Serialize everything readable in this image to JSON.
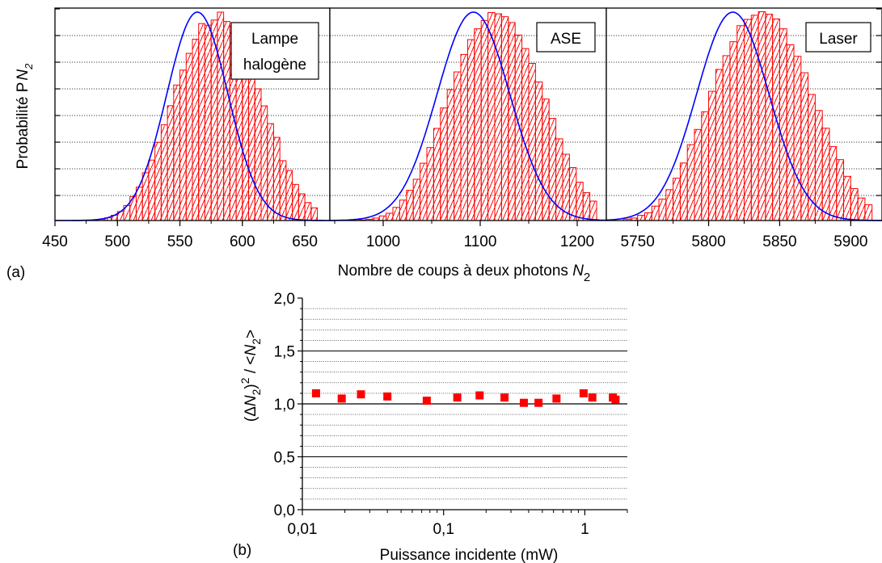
{
  "figure": {
    "panel_a_tag": "(a)",
    "panel_b_tag": "(b)"
  },
  "chart_data": [
    {
      "type": "bar",
      "panel": "a",
      "ylabel_prefix": "Probabilité P",
      "ylabel_sub": "N",
      "ylabel_subsub": "2",
      "xlabel_prefix": "Nombre de coups à deux photons ",
      "xlabel_var": "N",
      "xlabel_sub": "2",
      "colors": {
        "hist": "#ff0000",
        "fit": "#0000ff"
      },
      "subplots": [
        {
          "legend": [
            "Lampe",
            "halogène"
          ],
          "xlim": [
            450,
            670
          ],
          "ticks": [
            450,
            500,
            550,
            600,
            650
          ],
          "tick_labels": [
            "450",
            "500",
            "550",
            "600",
            "650"
          ],
          "mean": 564,
          "sigma": 24.5,
          "bin_width": 5,
          "bin_start": 475,
          "bin_end": 660,
          "bin_values": [
            0.002,
            0.003,
            0.006,
            0.013,
            0.025,
            0.043,
            0.072,
            0.115,
            0.16,
            0.229,
            0.29,
            0.375,
            0.46,
            0.551,
            0.65,
            0.722,
            0.802,
            0.87,
            0.945,
            0.937,
            0.962,
            1.0,
            0.955,
            0.932,
            0.875,
            0.798,
            0.717,
            0.632,
            0.55,
            0.465,
            0.399,
            0.287,
            0.24,
            0.173,
            0.128,
            0.086,
            0.061
          ]
        },
        {
          "legend": [
            "ASE"
          ],
          "xlim": [
            945,
            1230
          ],
          "ticks": [
            1000,
            1100,
            1200
          ],
          "tick_labels": [
            "1000",
            "1100",
            "1200"
          ],
          "mean": 1093,
          "sigma": 37.5,
          "bin_width": 7,
          "bin_start": 975,
          "bin_end": 1215,
          "bin_values": [
            0.003,
            0.006,
            0.012,
            0.022,
            0.035,
            0.063,
            0.098,
            0.145,
            0.198,
            0.275,
            0.35,
            0.442,
            0.54,
            0.628,
            0.713,
            0.797,
            0.868,
            0.92,
            0.96,
            0.998,
            0.992,
            0.978,
            0.95,
            0.89,
            0.825,
            0.754,
            0.665,
            0.583,
            0.49,
            0.392,
            0.318,
            0.254,
            0.184,
            0.134,
            0.093
          ]
        },
        {
          "legend": [
            "Laser"
          ],
          "xlim": [
            5728,
            5922
          ],
          "ticks": [
            5750,
            5800,
            5850,
            5900
          ],
          "tick_labels": [
            "5750",
            "5800",
            "5850",
            "5900"
          ],
          "mean": 5817,
          "sigma": 25.5,
          "bin_width": 5,
          "bin_start": 5740,
          "bin_end": 5905,
          "bin_values": [
            0.007,
            0.012,
            0.025,
            0.037,
            0.069,
            0.103,
            0.148,
            0.203,
            0.276,
            0.364,
            0.437,
            0.522,
            0.62,
            0.725,
            0.791,
            0.858,
            0.935,
            0.965,
            0.985,
            1.002,
            0.99,
            0.967,
            0.92,
            0.843,
            0.788,
            0.709,
            0.605,
            0.528,
            0.443,
            0.355,
            0.292,
            0.212,
            0.153,
            0.108,
            0.076
          ]
        }
      ]
    },
    {
      "type": "scatter",
      "panel": "b",
      "xscale": "log",
      "xlim": [
        0.01,
        2
      ],
      "ylim": [
        0,
        2
      ],
      "xticks": [
        0.01,
        0.1,
        1
      ],
      "xtick_labels": [
        "0,01",
        "0,1",
        "1"
      ],
      "yticks": [
        0,
        0.5,
        1,
        1.5,
        2
      ],
      "ytick_labels": [
        "0,0",
        "0,5",
        "1,0",
        "1,5",
        "2,0"
      ],
      "xlabel": "Puissance incidente (mW)",
      "ylabel_parts": [
        "(Δ",
        "N",
        "2",
        ")",
        "2",
        " / <",
        "N",
        "2",
        ">"
      ],
      "reference_line": 1.0,
      "marker_color": "#ff0000",
      "x": [
        0.0125,
        0.019,
        0.026,
        0.04,
        0.076,
        0.125,
        0.18,
        0.27,
        0.37,
        0.47,
        0.63,
        0.98,
        1.13,
        1.58,
        1.65
      ],
      "y": [
        1.1,
        1.05,
        1.09,
        1.07,
        1.03,
        1.06,
        1.08,
        1.06,
        1.01,
        1.01,
        1.05,
        1.1,
        1.06,
        1.06,
        1.04
      ]
    }
  ]
}
